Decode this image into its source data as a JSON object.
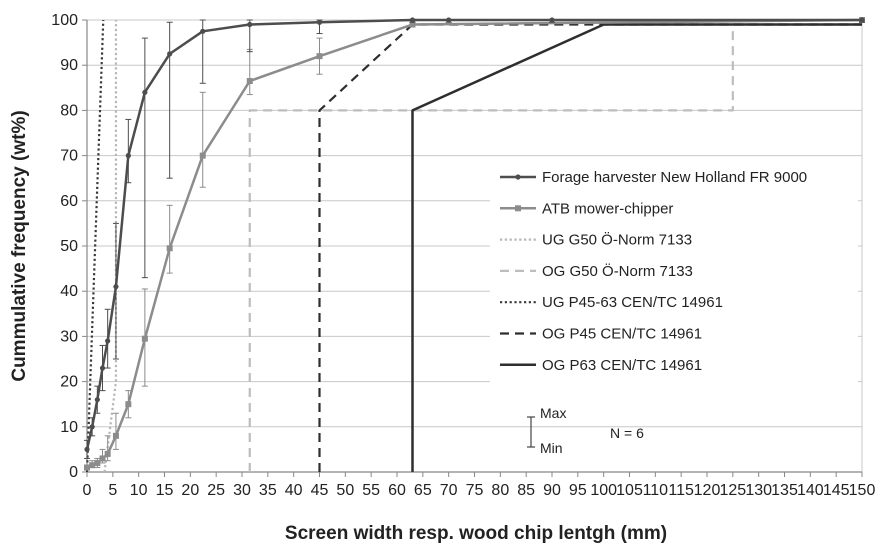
{
  "chart_data": {
    "type": "line",
    "xlabel": "Screen width resp. wood chip lentgh (mm)",
    "ylabel": "Cummulative frequency (wt%)",
    "xlim": [
      0,
      150
    ],
    "ylim": [
      0,
      100
    ],
    "xticks": [
      "0",
      "5",
      "10",
      "15",
      "20",
      "25",
      "30",
      "35",
      "40",
      "45",
      "50",
      "55",
      "60",
      "65",
      "70",
      "75",
      "80",
      "85",
      "90",
      "95",
      "100",
      "105",
      "110",
      "115",
      "120",
      "125",
      "130",
      "135",
      "140",
      "145",
      "150"
    ],
    "yticks": [
      "0",
      "10",
      "20",
      "30",
      "40",
      "50",
      "60",
      "70",
      "80",
      "90",
      "100"
    ],
    "grid": "horizontal",
    "legend_position": "right",
    "series": [
      {
        "name": "Forage harvester New Holland FR 9000",
        "color": "#4d4d4d",
        "style": "solid-marker",
        "x": [
          0,
          1,
          2,
          3,
          4,
          5.6,
          8,
          11.2,
          16,
          22.4,
          31.5,
          45,
          63,
          70,
          90,
          150
        ],
        "y": [
          5,
          10,
          16,
          23,
          29,
          41,
          70,
          84,
          92.5,
          97.5,
          99,
          99.5,
          100,
          100,
          100,
          100
        ],
        "err_min": [
          3,
          8,
          13,
          18,
          23,
          25,
          64,
          43,
          65,
          86,
          93,
          97,
          99.5,
          99.5,
          99.5,
          99.5
        ],
        "err_max": [
          7,
          12,
          19,
          28,
          36,
          55,
          78,
          96,
          99.5,
          100,
          100,
          100,
          100,
          100,
          100,
          100
        ]
      },
      {
        "name": "ATB mower-chipper",
        "color": "#8c8c8c",
        "style": "solid-square",
        "x": [
          0,
          1,
          2,
          3,
          4,
          5.6,
          8,
          11.2,
          16,
          22.4,
          31.5,
          45,
          63,
          150
        ],
        "y": [
          1,
          1.5,
          2,
          3,
          4,
          8,
          15,
          29.5,
          49.5,
          70,
          86.5,
          92,
          99,
          100
        ],
        "err_min": [
          0.5,
          1,
          1,
          2,
          2.5,
          5,
          12,
          19,
          44,
          63,
          83.5,
          88,
          98.5,
          99.5
        ],
        "err_max": [
          1.5,
          2.5,
          3,
          5,
          8,
          13,
          18,
          40.5,
          59,
          84,
          93.5,
          96,
          99.5,
          100
        ]
      },
      {
        "name": "UG G50 Ö-Norm 7133",
        "color": "#b5b5b5",
        "style": "dotted",
        "x": [
          3.4,
          5.6,
          5.6
        ],
        "y": [
          0,
          20,
          100
        ]
      },
      {
        "name": "OG G50 Ö-Norm 7133",
        "color": "#bdbdbd",
        "style": "dashed",
        "x": [
          31.5,
          31.5,
          125,
          125,
          150
        ],
        "y": [
          0,
          80,
          80,
          99,
          99
        ]
      },
      {
        "name": "UG P45-63 CEN/TC 14961",
        "color": "#3a3a3a",
        "style": "dotted",
        "x": [
          0,
          3.15
        ],
        "y": [
          0,
          100
        ]
      },
      {
        "name": "OG P45 CEN/TC 14961",
        "color": "#2e2e2e",
        "style": "dashed",
        "x": [
          45,
          45,
          63,
          150
        ],
        "y": [
          0,
          80,
          99,
          99
        ]
      },
      {
        "name": "OG P63 CEN/TC 14961",
        "color": "#2e2e2e",
        "style": "solid",
        "x": [
          63,
          63,
          100,
          150
        ],
        "y": [
          0,
          80,
          99,
          99
        ]
      }
    ],
    "annotations": {
      "max_label": "Max",
      "min_label": "Min",
      "n_label": "N = 6"
    }
  }
}
